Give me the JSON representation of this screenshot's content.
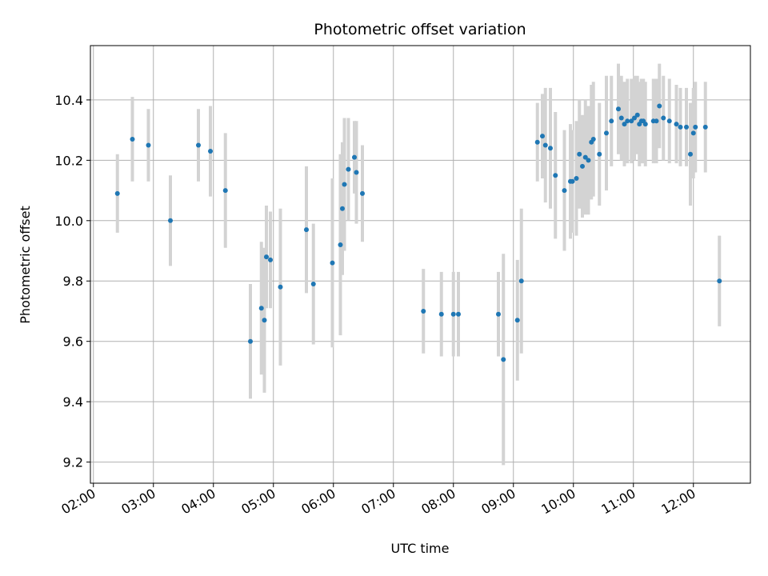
{
  "chart_data": {
    "type": "scatter",
    "title": "Photometric offset variation",
    "xlabel": "UTC time",
    "ylabel": "Photometric offset",
    "x_ticks": [
      "02:00",
      "03:00",
      "04:00",
      "05:00",
      "06:00",
      "07:00",
      "08:00",
      "09:00",
      "10:00",
      "11:00",
      "12:00"
    ],
    "y_ticks": [
      "9.2",
      "9.4",
      "9.6",
      "9.8",
      "10.0",
      "10.2",
      "10.4"
    ],
    "xlim": [
      "01:57",
      "12:57"
    ],
    "ylim": [
      9.13,
      10.58
    ],
    "grid": true,
    "colors": {
      "marker": "#1f77b4",
      "errorbar": "#d3d3d3",
      "grid": "#b0b0b0"
    },
    "series": [
      {
        "x": [
          "02:24",
          "02:39",
          "02:55",
          "03:17",
          "03:45",
          "03:57",
          "04:12",
          "04:37",
          "04:48",
          "04:51",
          "04:53",
          "04:57",
          "05:07",
          "05:33",
          "05:40",
          "05:59",
          "06:07",
          "06:09",
          "06:11",
          "06:15",
          "06:21",
          "06:23",
          "06:29",
          "09:24",
          "09:29",
          "09:32",
          "09:37",
          "09:42",
          "09:51",
          "09:57",
          "09:59",
          "10:03",
          "10:06",
          "10:09",
          "10:12",
          "10:15",
          "10:18",
          "10:20",
          "10:26",
          "10:33",
          "10:38",
          "10:45",
          "10:48",
          "10:51",
          "10:54",
          "10:58",
          "11:01",
          "11:04",
          "11:06",
          "11:08",
          "11:10",
          "11:12",
          "11:20",
          "11:23",
          "11:26",
          "11:30",
          "11:36",
          "11:43",
          "11:47",
          "11:53",
          "11:57",
          "12:00",
          "12:02",
          "12:12",
          "12:26"
        ],
        "y": [
          10.09,
          10.27,
          10.25,
          10.0,
          10.25,
          10.23,
          10.1,
          9.6,
          9.71,
          9.67,
          9.88,
          9.87,
          9.78,
          9.97,
          9.79,
          9.86,
          9.92,
          10.04,
          10.12,
          10.17,
          10.21,
          10.16,
          10.09,
          10.26,
          10.28,
          10.25,
          10.24,
          10.15,
          10.1,
          10.13,
          10.13,
          10.14,
          10.22,
          10.18,
          10.21,
          10.2,
          10.26,
          10.27,
          10.22,
          10.29,
          10.33,
          10.37,
          10.34,
          10.32,
          10.33,
          10.33,
          10.34,
          10.35,
          10.32,
          10.33,
          10.33,
          10.32,
          10.33,
          10.33,
          10.38,
          10.34,
          10.33,
          10.32,
          10.31,
          10.31,
          10.22,
          10.29,
          10.31,
          10.31,
          9.8
        ],
        "err": [
          0.13,
          0.14,
          0.12,
          0.15,
          0.12,
          0.15,
          0.19,
          0.19,
          0.22,
          0.24,
          0.17,
          0.16,
          0.26,
          0.21,
          0.2,
          0.28,
          0.3,
          0.22,
          0.22,
          0.17,
          0.12,
          0.17,
          0.16,
          0.13,
          0.14,
          0.19,
          0.2,
          0.21,
          0.2,
          0.19,
          0.17,
          0.19,
          0.18,
          0.17,
          0.19,
          0.18,
          0.19,
          0.19,
          0.17,
          0.19,
          0.15,
          0.15,
          0.14,
          0.14,
          0.14,
          0.14,
          0.14,
          0.13,
          0.14,
          0.14,
          0.14,
          0.14,
          0.14,
          0.14,
          0.14,
          0.14,
          0.14,
          0.13,
          0.13,
          0.13,
          0.17,
          0.15,
          0.15,
          0.15,
          0.15
        ]
      },
      {
        "x": [
          "07:30",
          "07:48",
          "08:00",
          "08:05",
          "08:45",
          "08:50",
          "09:04",
          "09:08"
        ],
        "y": [
          9.7,
          9.69,
          9.69,
          9.69,
          9.69,
          9.54,
          9.67,
          9.8
        ],
        "err": [
          0.14,
          0.14,
          0.14,
          0.14,
          0.14,
          0.35,
          0.2,
          0.24
        ]
      }
    ]
  }
}
